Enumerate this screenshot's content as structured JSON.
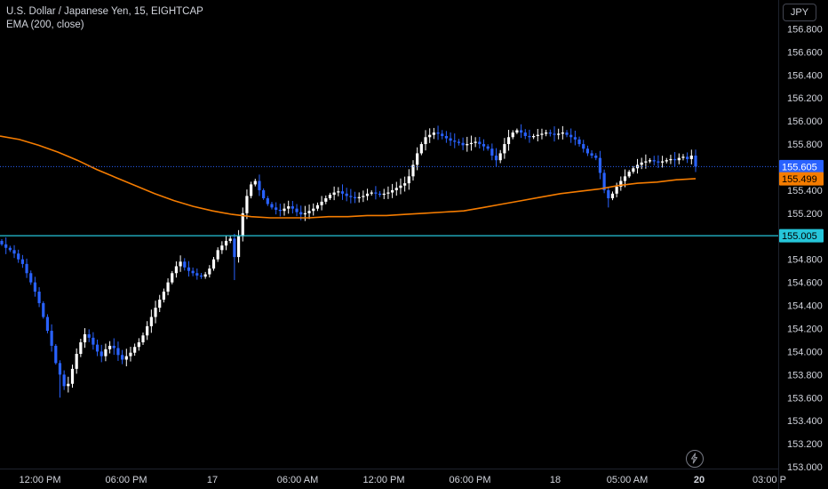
{
  "legend": {
    "symbol": "U.S. Dollar / Japanese Yen, 15, EIGHTCAP",
    "indicator": "EMA (200, close)"
  },
  "currency_button": "JPY",
  "colors": {
    "background": "#000000",
    "up_candle": "#ffffff",
    "down_candle": "#2962ff",
    "ema": "#f57c00",
    "horizontal_line": "#26c6da",
    "price_line": "#2962ff",
    "axis_text": "#d1d4dc"
  },
  "icons": {
    "bolt": "lightning-bolt-icon"
  },
  "chart_data": {
    "type": "candlestick",
    "y_ticks": [
      "156.800",
      "156.600",
      "156.400",
      "156.200",
      "156.000",
      "155.800",
      "155.600",
      "155.400",
      "155.200",
      "155.000",
      "154.800",
      "154.600",
      "154.400",
      "154.200",
      "154.000",
      "153.800",
      "153.600",
      "153.400",
      "153.200",
      "153.000"
    ],
    "y_tick_values": [
      156.8,
      156.6,
      156.4,
      156.2,
      156.0,
      155.8,
      155.6,
      155.4,
      155.2,
      155.0,
      154.8,
      154.6,
      154.4,
      154.2,
      154.0,
      153.8,
      153.6,
      153.4,
      153.2,
      153.0
    ],
    "x_ticks": [
      "12:00 PM",
      "06:00 PM",
      "17",
      "06:00 AM",
      "12:00 PM",
      "06:00 PM",
      "18",
      "05:00 AM",
      "20",
      "03:00 P"
    ],
    "x_tick_bold": [
      false,
      false,
      false,
      false,
      false,
      false,
      false,
      false,
      true,
      false
    ],
    "ylim": [
      152.985,
      157.05
    ],
    "price_labels": [
      {
        "value": 155.605,
        "text": "155.605",
        "type": "last_price"
      },
      {
        "value": 155.499,
        "text": "155.499",
        "type": "ema"
      },
      {
        "value": 155.005,
        "text": "155.005",
        "type": "horizontal_line"
      }
    ],
    "horizontal_line": 155.005,
    "ema_series": [
      155.87,
      155.84,
      155.79,
      155.73,
      155.66,
      155.58,
      155.51,
      155.44,
      155.37,
      155.31,
      155.26,
      155.22,
      155.19,
      155.17,
      155.16,
      155.16,
      155.16,
      155.17,
      155.17,
      155.18,
      155.18,
      155.19,
      155.2,
      155.21,
      155.22,
      155.25,
      155.28,
      155.31,
      155.34,
      155.37,
      155.39,
      155.41,
      155.44,
      155.46,
      155.47,
      155.49,
      155.5
    ],
    "closes": [
      154.93,
      154.9,
      154.88,
      154.85,
      154.8,
      154.76,
      154.68,
      154.6,
      154.52,
      154.42,
      154.3,
      154.18,
      154.05,
      153.9,
      153.8,
      153.7,
      153.72,
      153.85,
      153.98,
      154.08,
      154.15,
      154.12,
      154.06,
      154.0,
      153.96,
      154.02,
      154.05,
      154.03,
      153.97,
      153.93,
      153.96,
      153.99,
      154.04,
      154.08,
      154.14,
      154.22,
      154.3,
      154.38,
      154.45,
      154.52,
      154.6,
      154.68,
      154.74,
      154.78,
      154.73,
      154.7,
      154.68,
      154.66,
      154.65,
      154.67,
      154.72,
      154.8,
      154.88,
      154.92,
      154.96,
      154.98,
      154.82,
      155.0,
      155.2,
      155.35,
      155.45,
      155.48,
      155.4,
      155.33,
      155.28,
      155.25,
      155.23,
      155.22,
      155.24,
      155.26,
      155.24,
      155.21,
      155.19,
      155.2,
      155.22,
      155.24,
      155.27,
      155.3,
      155.33,
      155.36,
      155.38,
      155.39,
      155.37,
      155.35,
      155.34,
      155.33,
      155.34,
      155.35,
      155.37,
      155.38,
      155.37,
      155.36,
      155.37,
      155.38,
      155.4,
      155.42,
      155.44,
      155.46,
      155.52,
      155.62,
      155.72,
      155.8,
      155.86,
      155.88,
      155.9,
      155.89,
      155.87,
      155.85,
      155.83,
      155.82,
      155.81,
      155.79,
      155.8,
      155.81,
      155.82,
      155.8,
      155.78,
      155.76,
      155.7,
      155.66,
      155.72,
      155.8,
      155.86,
      155.9,
      155.92,
      155.9,
      155.87,
      155.86,
      155.87,
      155.88,
      155.89,
      155.9,
      155.89,
      155.88,
      155.89,
      155.9,
      155.88,
      155.86,
      155.84,
      155.8,
      155.76,
      155.72,
      155.7,
      155.68,
      155.55,
      155.4,
      155.33,
      155.37,
      155.43,
      155.48,
      155.52,
      155.56,
      155.59,
      155.62,
      155.64,
      155.65,
      155.66,
      155.65,
      155.64,
      155.65,
      155.66,
      155.67,
      155.66,
      155.68,
      155.69,
      155.67,
      155.7,
      155.605
    ]
  }
}
